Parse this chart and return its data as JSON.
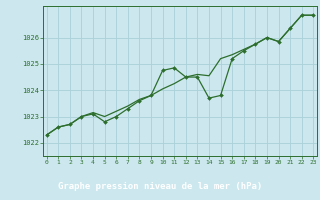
{
  "title": "Graphe pression niveau de la mer (hPa)",
  "bg_color": "#cce8ee",
  "plot_bg_color": "#cce8ee",
  "grid_color": "#aad0d8",
  "line_color": "#2d6e2d",
  "marker_color": "#2d6e2d",
  "xlabel_bg": "#2d6e2d",
  "xlabel_fg": "#ffffff",
  "x_ticks": [
    0,
    1,
    2,
    3,
    4,
    5,
    6,
    7,
    8,
    9,
    10,
    11,
    12,
    13,
    14,
    15,
    16,
    17,
    18,
    19,
    20,
    21,
    22,
    23
  ],
  "y_ticks": [
    1022,
    1023,
    1024,
    1025,
    1026
  ],
  "ylim": [
    1021.5,
    1027.2
  ],
  "xlim": [
    -0.3,
    23.3
  ],
  "hourly_data": [
    1022.3,
    1022.6,
    1022.7,
    1023.0,
    1023.1,
    1022.8,
    1023.0,
    1023.3,
    1023.6,
    1023.8,
    1024.75,
    1024.85,
    1024.5,
    1024.5,
    1023.7,
    1023.8,
    1025.2,
    1025.5,
    1025.75,
    1026.0,
    1025.85,
    1026.35,
    1026.85,
    1026.85
  ],
  "trend_data": [
    1022.3,
    1022.6,
    1022.7,
    1023.0,
    1023.15,
    1023.0,
    1023.2,
    1023.4,
    1023.65,
    1023.8,
    1024.05,
    1024.25,
    1024.5,
    1024.6,
    1024.55,
    1025.2,
    1025.35,
    1025.55,
    1025.75,
    1026.0,
    1025.85,
    1026.35,
    1026.85,
    1026.85
  ]
}
